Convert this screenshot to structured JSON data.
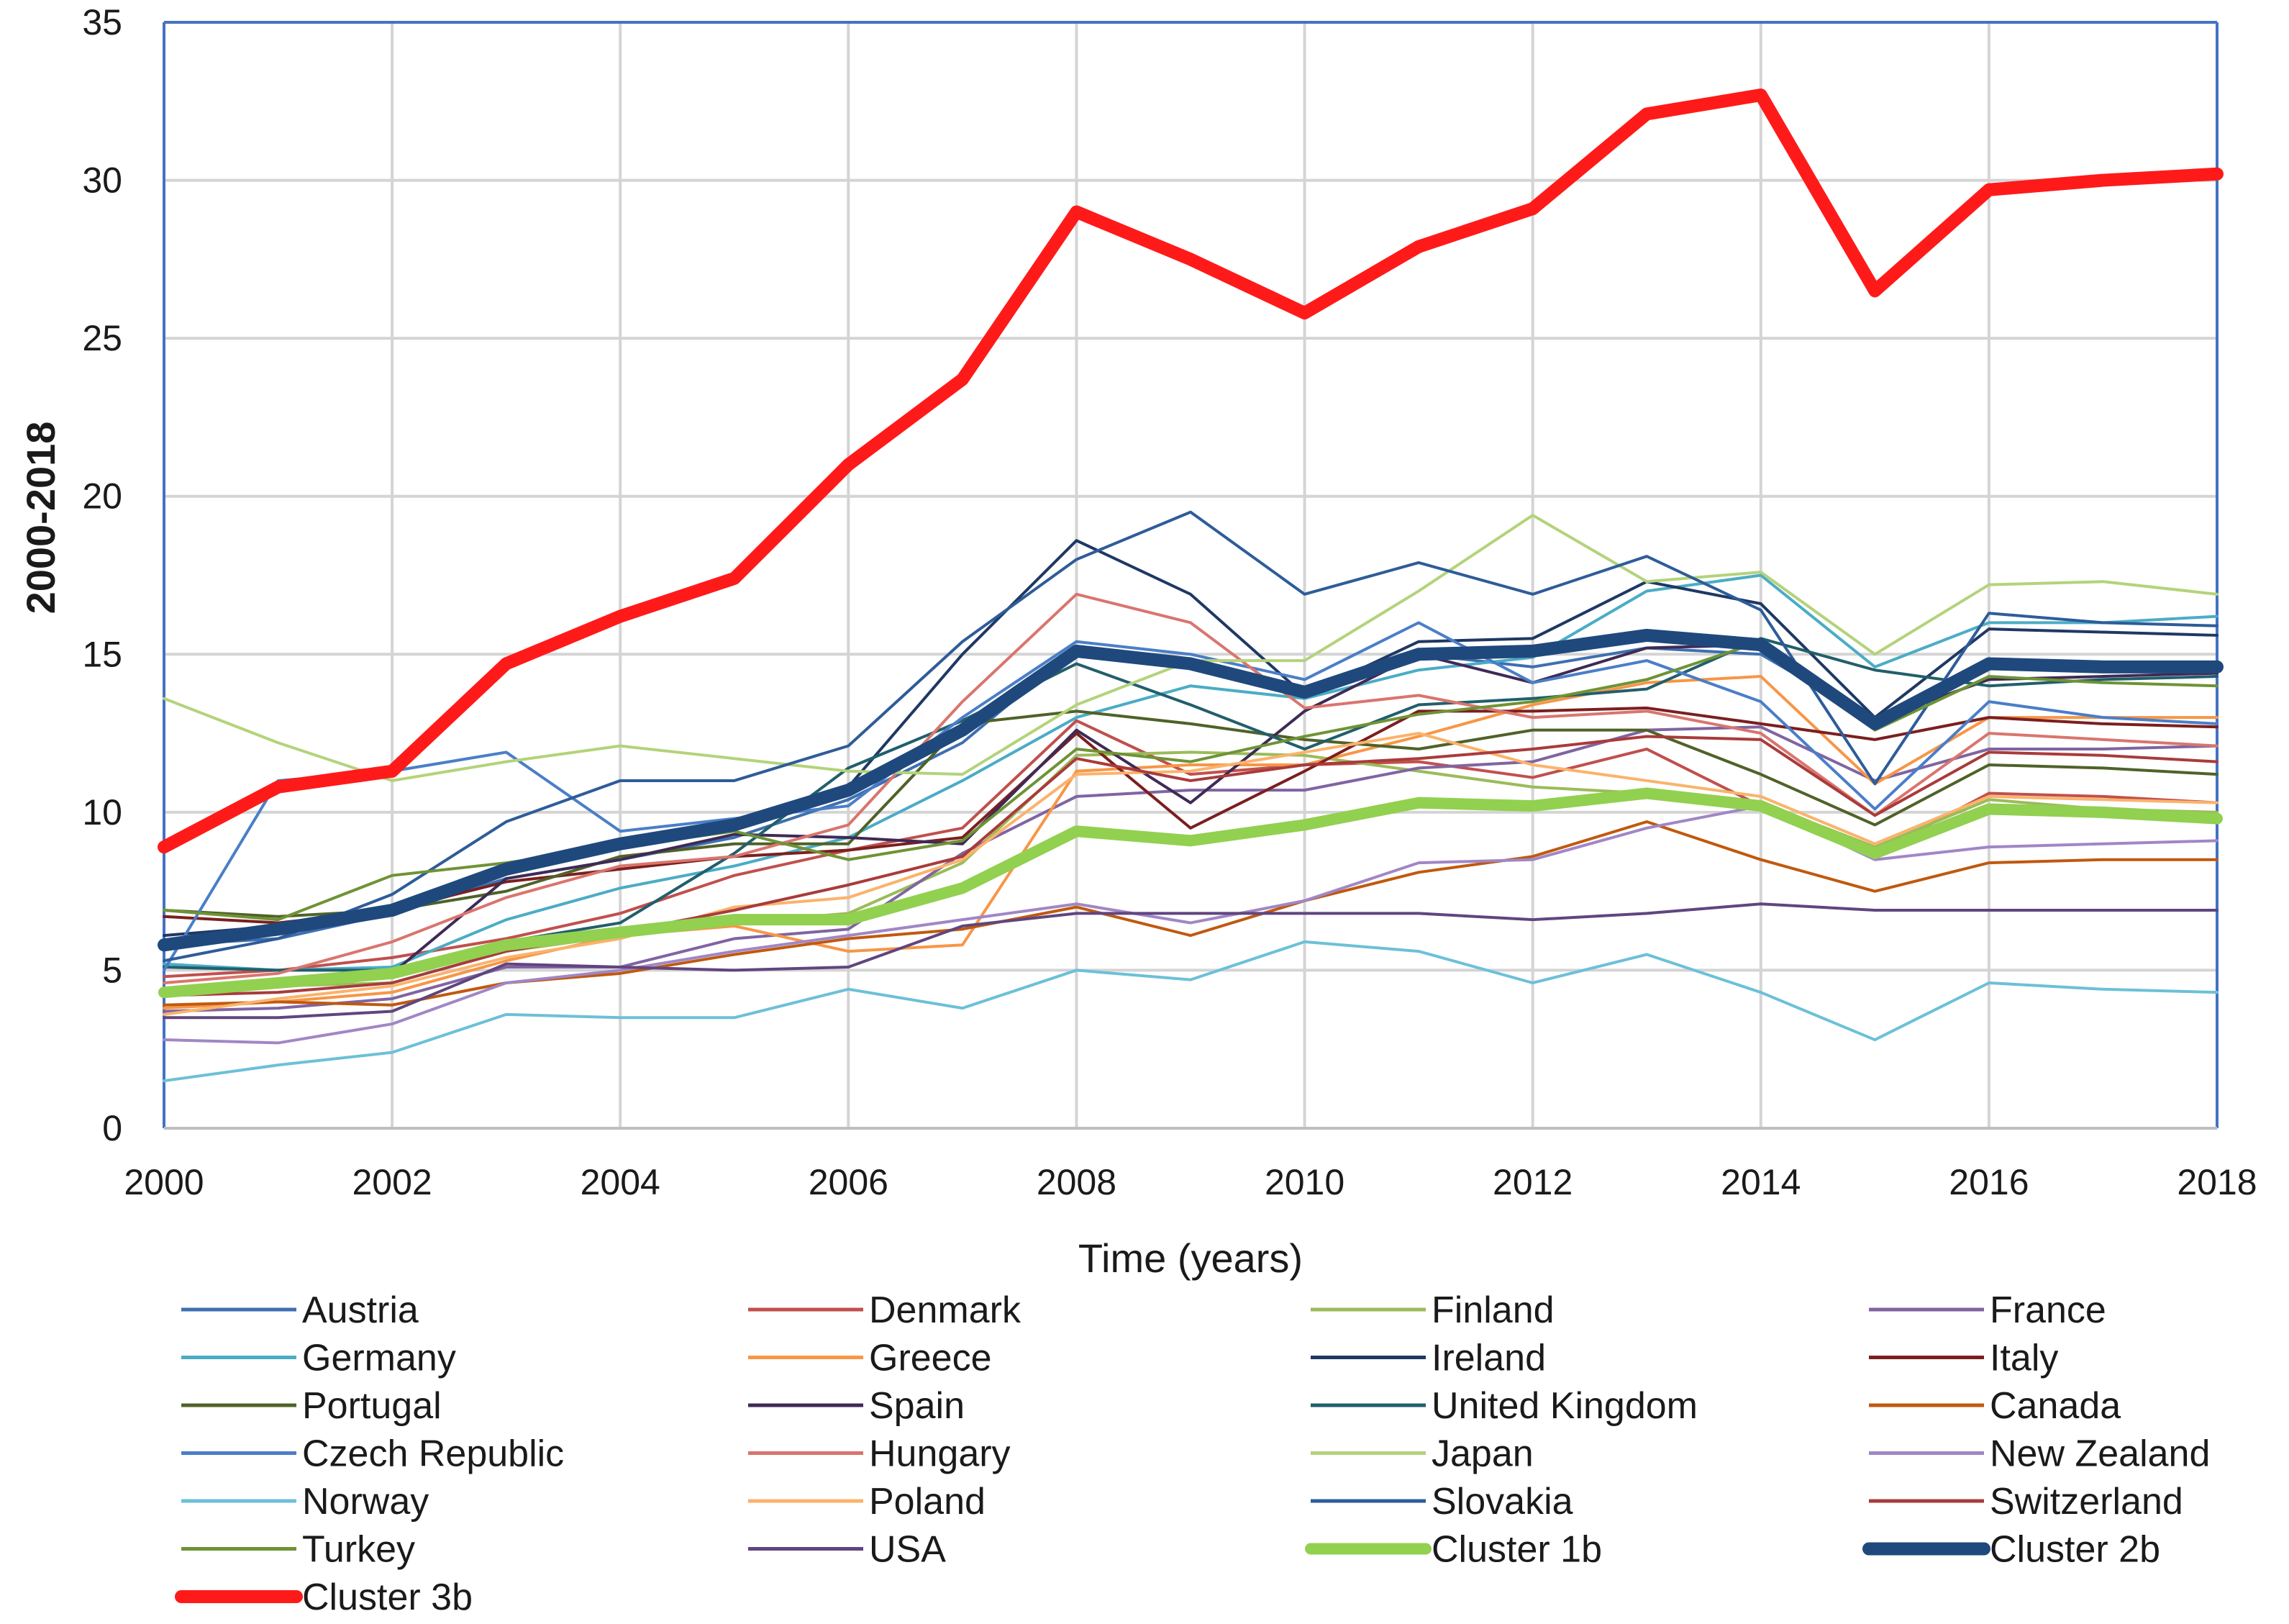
{
  "chart_data": {
    "type": "line",
    "title": "",
    "xlabel": "Time (years)",
    "ylabel": "2000-2018",
    "xlim": [
      2000,
      2018
    ],
    "ylim": [
      0,
      35
    ],
    "grid": true,
    "legend_position": "bottom",
    "x": [
      2000,
      2001,
      2002,
      2003,
      2004,
      2005,
      2006,
      2007,
      2008,
      2009,
      2010,
      2011,
      2012,
      2013,
      2014,
      2015,
      2016,
      2017,
      2018
    ],
    "x_ticks": [
      "2000",
      "2002",
      "2004",
      "2006",
      "2008",
      "2010",
      "2012",
      "2014",
      "2016",
      "2018"
    ],
    "y_ticks": [
      "0",
      "5",
      "10",
      "15",
      "20",
      "25",
      "30",
      "35"
    ],
    "series": [
      {
        "name": "Austria",
        "color": "#3E6FB0",
        "width": 4,
        "values": [
          5.8,
          6.0,
          6.8,
          7.9,
          8.5,
          9.2,
          10.4,
          12.2,
          15.2,
          14.7,
          13.7,
          15.0,
          14.6,
          15.2,
          15.0,
          12.9,
          14.8,
          14.7,
          14.6
        ]
      },
      {
        "name": "Denmark",
        "color": "#C0504D",
        "width": 4,
        "values": [
          4.8,
          5.0,
          5.4,
          6.0,
          6.8,
          8.0,
          8.8,
          9.5,
          12.9,
          11.2,
          11.5,
          11.6,
          11.1,
          12.0,
          10.2,
          8.7,
          10.6,
          10.5,
          10.3
        ]
      },
      {
        "name": "Finland",
        "color": "#9BBB59",
        "width": 4,
        "values": [
          4.2,
          4.5,
          4.6,
          5.6,
          6.1,
          6.5,
          6.8,
          8.4,
          11.8,
          11.9,
          11.8,
          11.3,
          10.8,
          10.6,
          10.3,
          8.9,
          10.4,
          10.1,
          10.0
        ]
      },
      {
        "name": "France",
        "color": "#8064A2",
        "width": 4,
        "values": [
          3.7,
          3.8,
          4.1,
          5.1,
          5.1,
          6.0,
          6.3,
          8.7,
          10.5,
          10.7,
          10.7,
          11.4,
          11.6,
          12.6,
          12.7,
          11.0,
          12.0,
          12.0,
          12.1
        ]
      },
      {
        "name": "Germany",
        "color": "#4BACC6",
        "width": 4,
        "values": [
          5.2,
          5.0,
          5.1,
          6.6,
          7.6,
          8.3,
          9.2,
          11.0,
          13.0,
          14.0,
          13.6,
          14.5,
          14.9,
          17.0,
          17.5,
          14.6,
          16.0,
          16.0,
          16.2
        ]
      },
      {
        "name": "Greece",
        "color": "#F79646",
        "width": 4,
        "values": [
          3.8,
          4.0,
          4.3,
          5.3,
          6.1,
          6.4,
          5.6,
          5.8,
          11.3,
          11.5,
          11.5,
          12.4,
          13.4,
          14.1,
          14.3,
          10.9,
          13.0,
          13.0,
          13.0
        ]
      },
      {
        "name": "Ireland",
        "color": "#1F3864",
        "width": 4,
        "values": [
          6.1,
          6.4,
          6.9,
          8.2,
          9.0,
          9.5,
          10.8,
          15.0,
          18.6,
          16.9,
          13.7,
          15.4,
          15.5,
          17.3,
          16.6,
          13.0,
          15.8,
          15.7,
          15.6
        ]
      },
      {
        "name": "Italy",
        "color": "#7B1F1F",
        "width": 4,
        "values": [
          6.7,
          6.5,
          6.9,
          7.8,
          8.2,
          8.6,
          8.8,
          9.2,
          12.5,
          9.5,
          11.3,
          13.2,
          13.2,
          13.3,
          12.8,
          12.3,
          13.0,
          12.8,
          12.7
        ]
      },
      {
        "name": "Portugal",
        "color": "#4F6228",
        "width": 4,
        "values": [
          6.9,
          6.7,
          6.9,
          7.5,
          8.6,
          9.0,
          9.0,
          12.8,
          13.2,
          12.8,
          12.3,
          12.0,
          12.6,
          12.6,
          11.2,
          9.6,
          11.5,
          11.4,
          11.2
        ]
      },
      {
        "name": "Spain",
        "color": "#3F2A56",
        "width": 4,
        "values": [
          4.3,
          4.6,
          4.9,
          7.9,
          8.5,
          9.3,
          9.2,
          9.0,
          12.6,
          10.3,
          13.2,
          15.0,
          14.1,
          15.2,
          15.3,
          12.9,
          14.2,
          14.3,
          14.4
        ]
      },
      {
        "name": "United Kingdom",
        "color": "#215F6B",
        "width": 4,
        "values": [
          5.1,
          5.0,
          5.0,
          5.9,
          6.5,
          8.7,
          11.4,
          12.9,
          14.7,
          13.4,
          12.0,
          13.4,
          13.6,
          13.9,
          15.5,
          14.5,
          14.0,
          14.2,
          14.3
        ]
      },
      {
        "name": "Canada",
        "color": "#C0590F",
        "width": 4,
        "values": [
          3.9,
          4.0,
          3.9,
          4.6,
          4.9,
          5.5,
          6.0,
          6.3,
          7.0,
          6.1,
          7.2,
          8.1,
          8.6,
          9.7,
          8.5,
          7.5,
          8.4,
          8.5,
          8.5
        ]
      },
      {
        "name": "Czech Republic",
        "color": "#4A7EC8",
        "width": 4,
        "values": [
          5.0,
          11.0,
          11.3,
          11.9,
          9.4,
          9.8,
          10.2,
          13.0,
          15.4,
          15.0,
          14.2,
          16.0,
          14.1,
          14.8,
          13.5,
          10.1,
          13.5,
          13.0,
          12.8
        ]
      },
      {
        "name": "Hungary",
        "color": "#D9756E",
        "width": 4,
        "values": [
          4.6,
          4.9,
          5.9,
          7.3,
          8.3,
          8.6,
          9.6,
          13.5,
          16.9,
          16.0,
          13.3,
          13.7,
          13.0,
          13.2,
          12.5,
          9.9,
          12.5,
          12.3,
          12.1
        ]
      },
      {
        "name": "Japan",
        "color": "#B3D37A",
        "width": 4,
        "values": [
          13.6,
          12.2,
          11.0,
          11.6,
          12.1,
          11.7,
          11.3,
          11.2,
          13.4,
          14.8,
          14.8,
          17.0,
          19.4,
          17.3,
          17.6,
          15.0,
          17.2,
          17.3,
          16.9
        ]
      },
      {
        "name": "New Zealand",
        "color": "#A086C6",
        "width": 4,
        "values": [
          2.8,
          2.7,
          3.3,
          4.6,
          5.0,
          5.6,
          6.1,
          6.6,
          7.1,
          6.5,
          7.2,
          8.4,
          8.5,
          9.5,
          10.2,
          8.5,
          8.9,
          9.0,
          9.1
        ]
      },
      {
        "name": "Norway",
        "color": "#6CC0D8",
        "width": 4,
        "values": [
          1.5,
          2.0,
          2.4,
          3.6,
          3.5,
          3.5,
          4.4,
          3.8,
          5.0,
          4.7,
          5.9,
          5.6,
          4.6,
          5.5,
          4.3,
          2.8,
          4.6,
          4.4,
          4.3
        ]
      },
      {
        "name": "Poland",
        "color": "#FAB36B",
        "width": 4,
        "values": [
          3.6,
          4.1,
          4.5,
          5.4,
          6.0,
          7.0,
          7.3,
          8.5,
          11.2,
          11.3,
          11.9,
          12.5,
          11.5,
          11.0,
          10.5,
          9.0,
          10.5,
          10.4,
          10.3
        ]
      },
      {
        "name": "Slovakia",
        "color": "#2E5C99",
        "width": 4,
        "values": [
          5.3,
          6.0,
          7.4,
          9.7,
          11.0,
          11.0,
          12.1,
          15.4,
          18.0,
          19.5,
          16.9,
          17.9,
          16.9,
          18.1,
          16.4,
          10.9,
          16.3,
          16.0,
          15.9
        ]
      },
      {
        "name": "Switzerland",
        "color": "#A93B3B",
        "width": 4,
        "values": [
          4.2,
          4.3,
          4.6,
          5.6,
          6.2,
          6.9,
          7.7,
          8.6,
          11.7,
          11.0,
          11.5,
          11.7,
          12.0,
          12.4,
          12.3,
          9.9,
          11.9,
          11.8,
          11.6
        ]
      },
      {
        "name": "Turkey",
        "color": "#6F9335",
        "width": 4,
        "values": [
          6.9,
          6.6,
          8.0,
          8.4,
          8.9,
          9.4,
          8.5,
          9.1,
          12.0,
          11.6,
          12.4,
          13.1,
          13.5,
          14.2,
          15.4,
          12.6,
          14.3,
          14.1,
          14.0
        ]
      },
      {
        "name": "USA",
        "color": "#60457F",
        "width": 4,
        "values": [
          3.5,
          3.5,
          3.7,
          5.2,
          5.1,
          5.0,
          5.1,
          6.4,
          6.8,
          6.8,
          6.8,
          6.8,
          6.6,
          6.8,
          7.1,
          6.9,
          6.9,
          6.9,
          6.9
        ]
      },
      {
        "name": "Cluster 1b",
        "color": "#92D050",
        "width": 16,
        "values": [
          4.3,
          4.6,
          4.9,
          5.8,
          6.2,
          6.6,
          6.6,
          7.6,
          9.4,
          9.1,
          9.6,
          10.3,
          10.2,
          10.6,
          10.2,
          8.7,
          10.1,
          10.0,
          9.8
        ]
      },
      {
        "name": "Cluster 2b",
        "color": "#1F497D",
        "width": 18,
        "values": [
          5.8,
          6.3,
          6.9,
          8.2,
          9.0,
          9.6,
          10.7,
          12.6,
          15.1,
          14.7,
          13.8,
          15.0,
          15.1,
          15.6,
          15.3,
          12.8,
          14.7,
          14.6,
          14.6
        ]
      },
      {
        "name": "Cluster 3b",
        "color": "#FF1A1A",
        "width": 18,
        "values": [
          8.9,
          10.8,
          11.3,
          14.7,
          16.2,
          17.4,
          21.0,
          23.7,
          29.0,
          27.5,
          25.8,
          27.9,
          29.1,
          32.1,
          32.7,
          26.5,
          29.7,
          30.0,
          30.2
        ]
      }
    ]
  }
}
